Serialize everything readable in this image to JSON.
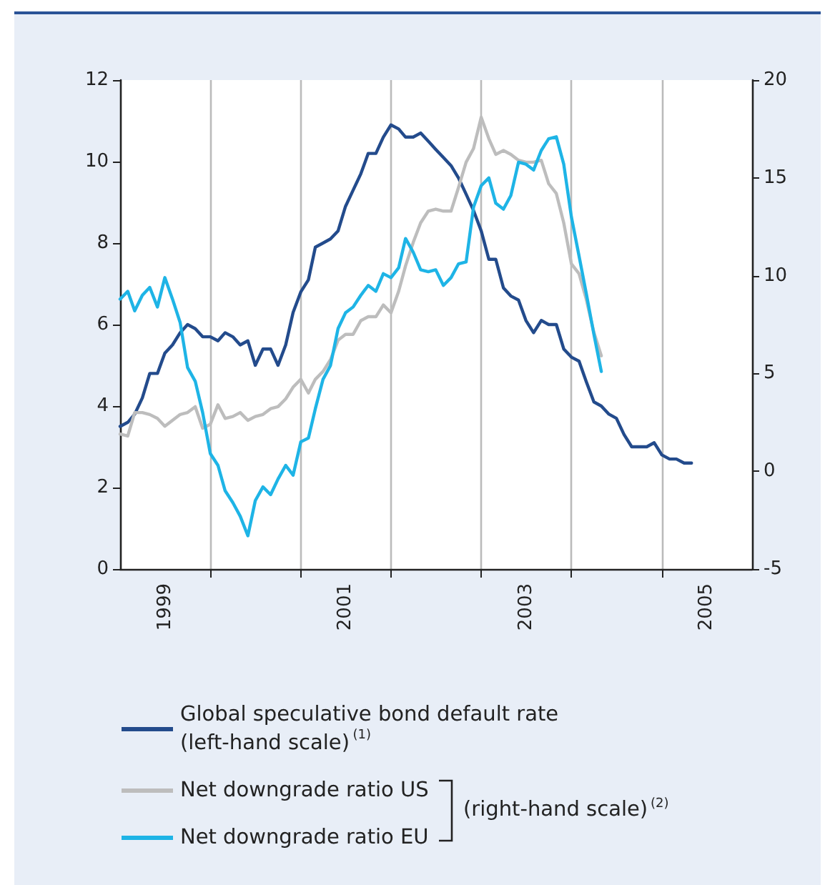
{
  "chart_data": {
    "type": "line",
    "x": [
      "1999-01",
      "1999-02",
      "1999-03",
      "1999-04",
      "1999-05",
      "1999-06",
      "1999-07",
      "1999-08",
      "1999-09",
      "1999-10",
      "1999-11",
      "1999-12",
      "2000-01",
      "2000-02",
      "2000-03",
      "2000-04",
      "2000-05",
      "2000-06",
      "2000-07",
      "2000-08",
      "2000-09",
      "2000-10",
      "2000-11",
      "2000-12",
      "2001-01",
      "2001-02",
      "2001-03",
      "2001-04",
      "2001-05",
      "2001-06",
      "2001-07",
      "2001-08",
      "2001-09",
      "2001-10",
      "2001-11",
      "2001-12",
      "2002-01",
      "2002-02",
      "2002-03",
      "2002-04",
      "2002-05",
      "2002-06",
      "2002-07",
      "2002-08",
      "2002-09",
      "2002-10",
      "2002-11",
      "2002-12",
      "2003-01",
      "2003-02",
      "2003-03",
      "2003-04",
      "2003-05",
      "2003-06",
      "2003-07",
      "2003-08",
      "2003-09",
      "2003-10",
      "2003-11",
      "2003-12",
      "2004-01",
      "2004-02",
      "2004-03",
      "2004-04",
      "2004-05",
      "2004-06",
      "2004-07",
      "2004-08",
      "2004-09",
      "2004-10",
      "2004-11",
      "2004-12",
      "2005-01",
      "2005-02",
      "2005-03",
      "2005-04",
      "2005-05"
    ],
    "series": [
      {
        "name": "Global speculative bond default rate (left-hand scale)$^{(1)}$",
        "color": "#234b8c",
        "values": [
          3.5,
          3.6,
          3.8,
          4.2,
          4.8,
          4.8,
          5.3,
          5.5,
          5.8,
          6.0,
          5.9,
          5.7,
          5.7,
          5.6,
          5.8,
          5.7,
          5.5,
          5.6,
          5.0,
          5.4,
          5.4,
          5.0,
          5.5,
          6.3,
          6.8,
          7.1,
          7.9,
          8.0,
          8.1,
          8.3,
          8.9,
          9.3,
          9.7,
          10.2,
          10.2,
          10.6,
          10.9,
          10.8,
          10.6,
          10.6,
          10.7,
          10.5,
          10.3,
          10.1,
          9.9,
          9.6,
          9.2,
          8.8,
          8.3,
          7.6,
          7.6,
          6.9,
          6.7,
          6.6,
          6.1,
          5.8,
          6.1,
          6.0,
          6.0,
          5.4,
          5.2,
          5.1,
          4.6,
          4.1,
          4.0,
          3.8,
          3.7,
          3.3,
          3.0,
          3.0,
          3.0,
          3.1,
          2.8,
          2.7,
          2.7,
          2.6,
          2.6
        ]
      },
      {
        "name": "Net downgrade ratio US",
        "color": "#bdbdbd",
        "axis": "y2",
        "values": [
          1.9,
          1.8,
          3.0,
          3.0,
          2.9,
          2.7,
          2.3,
          2.6,
          2.9,
          3.0,
          3.3,
          2.2,
          2.4,
          3.4,
          2.7,
          2.8,
          3.0,
          2.6,
          2.8,
          2.9,
          3.2,
          3.3,
          3.7,
          4.3,
          4.7,
          4.0,
          4.7,
          5.1,
          5.7,
          6.7,
          7.0,
          7.0,
          7.7,
          7.9,
          7.9,
          8.5,
          8.1,
          9.2,
          10.5,
          11.7,
          12.7,
          13.3,
          13.4,
          13.3,
          13.3,
          14.5,
          15.8,
          16.5,
          18.1,
          17.0,
          16.2,
          16.4,
          16.2,
          15.9,
          15.8,
          15.8,
          15.9,
          14.7,
          14.2,
          12.7,
          10.6,
          10.1,
          8.8,
          7.1,
          5.9,
          null,
          null,
          null,
          null,
          null,
          null,
          null,
          null,
          null,
          null,
          null,
          null
        ]
      },
      {
        "name": "Net downgrade ratio EU",
        "color": "#1eb4e6",
        "axis": "y2",
        "values": [
          8.8,
          9.2,
          8.2,
          9.0,
          9.4,
          8.4,
          9.9,
          8.8,
          7.6,
          5.3,
          4.6,
          3.0,
          0.9,
          0.3,
          -1.0,
          -1.6,
          -2.3,
          -3.3,
          -1.5,
          -0.8,
          -1.2,
          -0.4,
          0.3,
          -0.2,
          1.5,
          1.7,
          3.2,
          4.7,
          5.4,
          7.3,
          8.1,
          8.4,
          9.0,
          9.5,
          9.2,
          10.1,
          9.9,
          10.4,
          11.9,
          11.2,
          10.3,
          10.2,
          10.3,
          9.5,
          9.9,
          10.6,
          10.7,
          13.5,
          14.6,
          15.0,
          13.7,
          13.4,
          14.1,
          15.8,
          15.7,
          15.4,
          16.4,
          17.0,
          17.1,
          15.7,
          13.0,
          11.0,
          9.1,
          7.0,
          5.1,
          null,
          null,
          null,
          null,
          null,
          null,
          null,
          null,
          null,
          null,
          null,
          null
        ]
      }
    ],
    "xlim": [
      "1999-01",
      "2006-01"
    ],
    "xticks": [
      {
        "value": "1999-07",
        "label": "1999"
      },
      {
        "value": "2000-01",
        "label": null
      },
      {
        "value": "2001-01",
        "label": null
      },
      {
        "value": "2001-07",
        "label": "2001"
      },
      {
        "value": "2002-01",
        "label": null
      },
      {
        "value": "2003-01",
        "label": null
      },
      {
        "value": "2003-07",
        "label": "2003"
      },
      {
        "value": "2004-01",
        "label": null
      },
      {
        "value": "2005-01",
        "label": null
      },
      {
        "value": "2005-07",
        "label": "2005"
      }
    ],
    "ylim": [
      0,
      12
    ],
    "yticks": [
      0,
      2,
      4,
      6,
      8,
      10,
      12
    ],
    "y2lim": [
      -5,
      20
    ],
    "y2ticks": [
      -5,
      0,
      5,
      10,
      15,
      20
    ],
    "grid": "x",
    "legend": "bottom",
    "marker": "none",
    "line_style": "solid",
    "annotations": [
      "(right-hand scale)$^{(2)}$"
    ]
  }
}
